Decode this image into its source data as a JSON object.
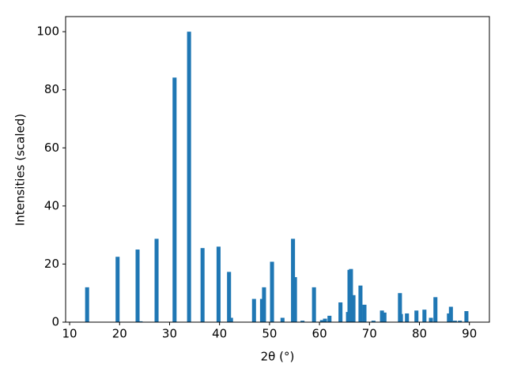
{
  "chart_data": {
    "type": "bar",
    "x_label": "2θ (°)",
    "y_label": "Intensities (scaled)",
    "color": "#1f77b4",
    "x": [
      13.5,
      19.6,
      23.6,
      24.2,
      27.4,
      31.0,
      33.9,
      36.6,
      39.8,
      41.9,
      42.3,
      46.9,
      48.5,
      48.9,
      50.5,
      52.6,
      54.7,
      55.1,
      56.6,
      58.9,
      60.5,
      61.1,
      62.0,
      64.2,
      65.7,
      66.0,
      66.3,
      66.8,
      68.2,
      69.0,
      70.8,
      72.5,
      73.0,
      76.1,
      76.3,
      77.5,
      79.4,
      81.0,
      82.3,
      83.2,
      85.9,
      86.3,
      87.1,
      88.1,
      89.4
    ],
    "values": [
      12,
      22.5,
      25,
      0.3,
      28.7,
      84.2,
      100,
      25.5,
      26,
      17.3,
      1.5,
      8,
      8,
      12,
      20.8,
      1.5,
      28.7,
      15.5,
      0.5,
      12,
      0.7,
      1.2,
      2.2,
      6.8,
      3.5,
      18,
      18.3,
      9.3,
      12.6,
      6,
      0.5,
      4,
      3.3,
      10,
      2.8,
      3,
      4,
      4.3,
      1.5,
      8.6,
      3,
      5.3,
      0.5,
      0.5,
      3.8
    ],
    "xlim": [
      9.2,
      94.0
    ],
    "ylim": [
      0,
      105.2
    ],
    "xticks": [
      10,
      20,
      30,
      40,
      50,
      60,
      70,
      80,
      90
    ],
    "yticks": [
      0,
      20,
      40,
      60,
      80,
      100
    ]
  }
}
